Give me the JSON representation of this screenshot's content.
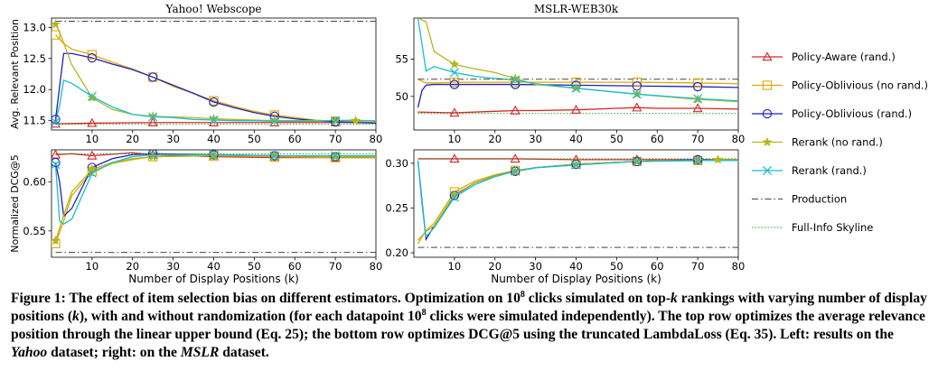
{
  "chart_data": [
    {
      "type": "line",
      "panel": "top-left",
      "title": "Yahoo! Webscope",
      "xlabel": "",
      "ylabel": "Avg. Relevant Position",
      "xlim": [
        0,
        80
      ],
      "ylim": [
        11.35,
        13.15
      ],
      "xticks": [
        10,
        20,
        30,
        40,
        50,
        60,
        70,
        80
      ],
      "yticks": [
        11.5,
        12.0,
        12.5,
        13.0
      ],
      "yticklabels": [
        "11.5",
        "12.0",
        "12.5",
        "13.0"
      ],
      "series": [
        {
          "name": "Policy-Aware (rand.)",
          "color": "#d62728",
          "marker": "triangle",
          "x": [
            1,
            10,
            25,
            40,
            55,
            70,
            80
          ],
          "y": [
            11.45,
            11.46,
            11.47,
            11.47,
            11.47,
            11.47,
            11.47
          ]
        },
        {
          "name": "Policy-Oblivious (no rand.)",
          "color": "#e0a800",
          "marker": "square",
          "x": [
            1,
            3,
            5,
            10,
            15,
            20,
            25,
            30,
            35,
            40,
            45,
            50,
            55,
            60,
            65,
            70,
            75,
            80
          ],
          "y": [
            12.88,
            12.74,
            12.65,
            12.56,
            12.44,
            12.33,
            12.2,
            12.05,
            11.94,
            11.82,
            11.73,
            11.65,
            11.59,
            11.55,
            11.51,
            11.49,
            11.48,
            11.47
          ]
        },
        {
          "name": "Policy-Oblivious (rand.)",
          "color": "#1f1fbf",
          "marker": "circle",
          "x": [
            1,
            2,
            3,
            5,
            10,
            15,
            20,
            25,
            30,
            35,
            40,
            45,
            50,
            55,
            60,
            65,
            70,
            75,
            80
          ],
          "y": [
            11.52,
            12.05,
            12.58,
            12.58,
            12.51,
            12.41,
            12.32,
            12.2,
            12.07,
            11.94,
            11.8,
            11.71,
            11.63,
            11.57,
            11.53,
            11.5,
            11.48,
            11.47,
            11.46
          ]
        },
        {
          "name": "Rerank (no rand.)",
          "color": "#b5b51c",
          "marker": "star",
          "x": [
            1,
            2,
            3,
            5,
            10,
            15,
            20,
            25,
            30,
            35,
            40,
            45,
            50,
            55,
            60,
            65,
            70,
            75,
            80
          ],
          "y": [
            13.05,
            12.92,
            12.75,
            12.4,
            11.87,
            11.68,
            11.6,
            11.57,
            11.56,
            11.55,
            11.53,
            11.52,
            11.51,
            11.5,
            11.5,
            11.5,
            11.5,
            11.5,
            11.5
          ]
        },
        {
          "name": "Rerank (rand.)",
          "color": "#17becf",
          "marker": "x",
          "x": [
            1,
            2,
            3,
            5,
            10,
            15,
            20,
            25,
            30,
            35,
            40,
            45,
            50,
            55,
            60,
            65,
            70,
            75,
            80
          ],
          "y": [
            11.48,
            11.75,
            12.15,
            12.1,
            11.89,
            11.72,
            11.6,
            11.56,
            11.55,
            11.52,
            11.51,
            11.5,
            11.5,
            11.49,
            11.49,
            11.49,
            11.5,
            11.51,
            11.49
          ]
        },
        {
          "name": "Production",
          "color": "#444444",
          "dash": "dashdot",
          "x": [
            1,
            80
          ],
          "y": [
            13.1,
            13.1
          ]
        },
        {
          "name": "Full-Info Skyline",
          "color": "#2ca02c",
          "dash": "dotted",
          "x": [
            1,
            80
          ],
          "y": [
            11.44,
            11.44
          ]
        }
      ]
    },
    {
      "type": "line",
      "panel": "top-right",
      "title": "MSLR-WEB30k",
      "xlabel": "",
      "ylabel": "",
      "xlim": [
        0,
        80
      ],
      "ylim": [
        45.5,
        60.5
      ],
      "xticks": [
        10,
        20,
        30,
        40,
        50,
        60,
        70,
        80
      ],
      "yticks": [
        50,
        55
      ],
      "yticklabels": [
        "50",
        "55"
      ],
      "series": [
        {
          "name": "Policy-Aware (rand.)",
          "color": "#d62728",
          "marker": "triangle",
          "x": [
            1,
            10,
            20,
            25,
            30,
            40,
            50,
            55,
            60,
            70,
            80
          ],
          "y": [
            47.9,
            47.8,
            48.0,
            48.1,
            48.1,
            48.2,
            48.4,
            48.5,
            48.4,
            48.4,
            48.3
          ]
        },
        {
          "name": "Policy-Oblivious (no rand.)",
          "color": "#e0a800",
          "marker": "square",
          "x": [
            1,
            3,
            5,
            10,
            25,
            40,
            55,
            70,
            80
          ],
          "y": [
            52.3,
            51.8,
            51.8,
            51.9,
            51.9,
            51.9,
            51.9,
            51.8,
            51.7
          ]
        },
        {
          "name": "Policy-Oblivious (rand.)",
          "color": "#1f1fbf",
          "marker": "circle",
          "x": [
            1,
            2,
            3,
            5,
            10,
            25,
            40,
            55,
            70,
            80
          ],
          "y": [
            48.5,
            50.8,
            51.5,
            51.6,
            51.6,
            51.6,
            51.5,
            51.4,
            51.3,
            51.2
          ]
        },
        {
          "name": "Rerank (no rand.)",
          "color": "#b5b51c",
          "marker": "star",
          "x": [
            1,
            3,
            5,
            10,
            15,
            20,
            25,
            30,
            40,
            55,
            70,
            80
          ],
          "y": [
            60.5,
            60.0,
            56.0,
            54.3,
            53.7,
            53.2,
            52.4,
            51.6,
            51.1,
            50.3,
            49.6,
            49.3
          ]
        },
        {
          "name": "Rerank (rand.)",
          "color": "#17becf",
          "marker": "x",
          "x": [
            1,
            2,
            3,
            5,
            10,
            15,
            20,
            25,
            30,
            40,
            55,
            70,
            80
          ],
          "y": [
            60.5,
            57.0,
            53.4,
            54.0,
            53.2,
            52.7,
            52.4,
            52.2,
            51.7,
            51.1,
            50.3,
            49.7,
            49.4
          ]
        },
        {
          "name": "Production",
          "color": "#444444",
          "dash": "dashdot",
          "x": [
            1,
            80
          ],
          "y": [
            52.3,
            52.3
          ]
        },
        {
          "name": "Full-Info Skyline",
          "color": "#2ca02c",
          "dash": "dotted",
          "x": [
            1,
            80
          ],
          "y": [
            47.7,
            47.7
          ]
        }
      ]
    },
    {
      "type": "line",
      "panel": "bottom-left",
      "title": "",
      "xlabel": "Number of Display Positions (k)",
      "ylabel": "Normalized DCG@5",
      "xlim": [
        0,
        80
      ],
      "ylim": [
        0.523,
        0.633
      ],
      "xticks": [
        10,
        20,
        30,
        40,
        50,
        60,
        70,
        80
      ],
      "yticks": [
        0.55,
        0.6
      ],
      "yticklabels": [
        "0.55",
        "0.60"
      ],
      "series": [
        {
          "name": "Policy-Aware (rand.)",
          "color": "#d62728",
          "marker": "triangle",
          "x": [
            1,
            5,
            10,
            20,
            25,
            40,
            55,
            70,
            80
          ],
          "y": [
            0.628,
            0.629,
            0.627,
            0.63,
            0.628,
            0.626,
            0.625,
            0.625,
            0.625
          ]
        },
        {
          "name": "Policy-Oblivious (no rand.)",
          "color": "#e0a800",
          "marker": "square",
          "x": [
            1,
            3,
            5,
            10,
            15,
            20,
            25,
            40,
            55,
            70,
            80
          ],
          "y": [
            0.537,
            0.56,
            0.586,
            0.611,
            0.619,
            0.623,
            0.626,
            0.627,
            0.626,
            0.625,
            0.625
          ]
        },
        {
          "name": "Policy-Oblivious (rand.)",
          "color": "#1f1fbf",
          "marker": "circle",
          "x": [
            1,
            2,
            3,
            5,
            10,
            15,
            20,
            25,
            40,
            55,
            70,
            80
          ],
          "y": [
            0.62,
            0.6,
            0.565,
            0.573,
            0.615,
            0.624,
            0.628,
            0.629,
            0.628,
            0.627,
            0.626,
            0.626
          ]
        },
        {
          "name": "Rerank (no rand.)",
          "color": "#b5b51c",
          "marker": "star",
          "x": [
            1,
            3,
            5,
            10,
            15,
            20,
            25,
            40,
            55,
            70,
            80
          ],
          "y": [
            0.54,
            0.566,
            0.59,
            0.613,
            0.62,
            0.624,
            0.626,
            0.627,
            0.627,
            0.626,
            0.626
          ]
        },
        {
          "name": "Rerank (rand.)",
          "color": "#17becf",
          "marker": "x",
          "x": [
            1,
            2,
            3,
            5,
            10,
            15,
            20,
            25,
            40,
            55,
            70,
            80
          ],
          "y": [
            0.618,
            0.56,
            0.557,
            0.562,
            0.609,
            0.62,
            0.626,
            0.628,
            0.628,
            0.627,
            0.627,
            0.627
          ]
        },
        {
          "name": "Production",
          "color": "#444444",
          "dash": "dashdot",
          "x": [
            1,
            80
          ],
          "y": [
            0.528,
            0.528
          ]
        },
        {
          "name": "Full-Info Skyline",
          "color": "#2ca02c",
          "dash": "dotted",
          "x": [
            1,
            80
          ],
          "y": [
            0.629,
            0.629
          ]
        }
      ]
    },
    {
      "type": "line",
      "panel": "bottom-right",
      "title": "",
      "xlabel": "Number of Display Positions (k)",
      "ylabel": "",
      "xlim": [
        0,
        80
      ],
      "ylim": [
        0.195,
        0.315
      ],
      "xticks": [
        10,
        20,
        30,
        40,
        50,
        60,
        70,
        80
      ],
      "yticks": [
        0.2,
        0.25,
        0.3
      ],
      "yticklabels": [
        "0.20",
        "0.25",
        "0.30"
      ],
      "series": [
        {
          "name": "Policy-Aware (rand.)",
          "color": "#d62728",
          "marker": "triangle",
          "x": [
            1,
            10,
            25,
            40,
            55,
            70,
            80
          ],
          "y": [
            0.305,
            0.305,
            0.305,
            0.304,
            0.304,
            0.304,
            0.304
          ]
        },
        {
          "name": "Policy-Oblivious (no rand.)",
          "color": "#e0a800",
          "marker": "square",
          "x": [
            1,
            3,
            5,
            10,
            15,
            20,
            25,
            30,
            40,
            55,
            70,
            80
          ],
          "y": [
            0.21,
            0.225,
            0.233,
            0.268,
            0.28,
            0.287,
            0.292,
            0.295,
            0.299,
            0.302,
            0.303,
            0.303
          ]
        },
        {
          "name": "Policy-Oblivious (rand.)",
          "color": "#1f1fbf",
          "marker": "circle",
          "x": [
            1,
            2,
            3,
            5,
            10,
            15,
            20,
            25,
            30,
            40,
            55,
            70,
            80
          ],
          "y": [
            0.303,
            0.258,
            0.215,
            0.23,
            0.264,
            0.278,
            0.286,
            0.291,
            0.295,
            0.299,
            0.302,
            0.304,
            0.304
          ]
        },
        {
          "name": "Rerank (no rand.)",
          "color": "#b5b51c",
          "marker": "star",
          "x": [
            1,
            3,
            5,
            10,
            15,
            20,
            25,
            30,
            40,
            55,
            60,
            70,
            75,
            80
          ],
          "y": [
            0.214,
            0.224,
            0.23,
            0.265,
            0.278,
            0.286,
            0.291,
            0.295,
            0.299,
            0.302,
            0.303,
            0.303,
            0.304,
            0.304
          ]
        },
        {
          "name": "Rerank (rand.)",
          "color": "#17becf",
          "marker": "x",
          "x": [
            1,
            2,
            3,
            5,
            10,
            15,
            20,
            25,
            30,
            40,
            55,
            70,
            80
          ],
          "y": [
            0.303,
            0.255,
            0.218,
            0.228,
            0.262,
            0.276,
            0.285,
            0.291,
            0.295,
            0.298,
            0.302,
            0.303,
            0.303
          ]
        },
        {
          "name": "Production",
          "color": "#444444",
          "dash": "dashdot",
          "x": [
            1,
            80
          ],
          "y": [
            0.206,
            0.206
          ]
        },
        {
          "name": "Full-Info Skyline",
          "color": "#2ca02c",
          "dash": "dotted",
          "x": [
            1,
            80
          ],
          "y": [
            0.305,
            0.305
          ]
        }
      ]
    }
  ],
  "legend": [
    {
      "label": "Policy-Aware (rand.)",
      "color": "#d62728",
      "marker": "triangle",
      "dash": "solid"
    },
    {
      "label": "Policy-Oblivious (no rand.)",
      "color": "#e0a800",
      "marker": "square",
      "dash": "solid"
    },
    {
      "label": "Policy-Oblivious (rand.)",
      "color": "#1f1fbf",
      "marker": "circle",
      "dash": "solid"
    },
    {
      "label": "Rerank (no rand.)",
      "color": "#b5b51c",
      "marker": "star",
      "dash": "solid"
    },
    {
      "label": "Rerank (rand.)",
      "color": "#17becf",
      "marker": "x",
      "dash": "solid"
    },
    {
      "label": "Production",
      "color": "#444444",
      "marker": "none",
      "dash": "dashdot"
    },
    {
      "label": "Full-Info Skyline",
      "color": "#2ca02c",
      "marker": "none",
      "dash": "dotted"
    }
  ],
  "caption": {
    "label": "Figure 1:",
    "p1": " The effect of item selection bias on different estimators. Optimization on ",
    "n1": "10",
    "e1": "8",
    "p2": " clicks simulated on top-",
    "k1": "k",
    "p3": " rankings with varying number of display positions (",
    "k2": "k",
    "p4": "), with and without randomization (for each datapoint ",
    "n2": "10",
    "e2": "8",
    "p5": " clicks were simulated independently). The top row optimizes the average relevance position through the linear upper bound (Eq. 25); the bottom row optimizes DCG@5 using the truncated LambdaLoss (Eq. 35). Left: results on the ",
    "yahoo": "Yahoo",
    "p6": " dataset; right: on the ",
    "mslr": "MSLR",
    "p7": " dataset."
  }
}
